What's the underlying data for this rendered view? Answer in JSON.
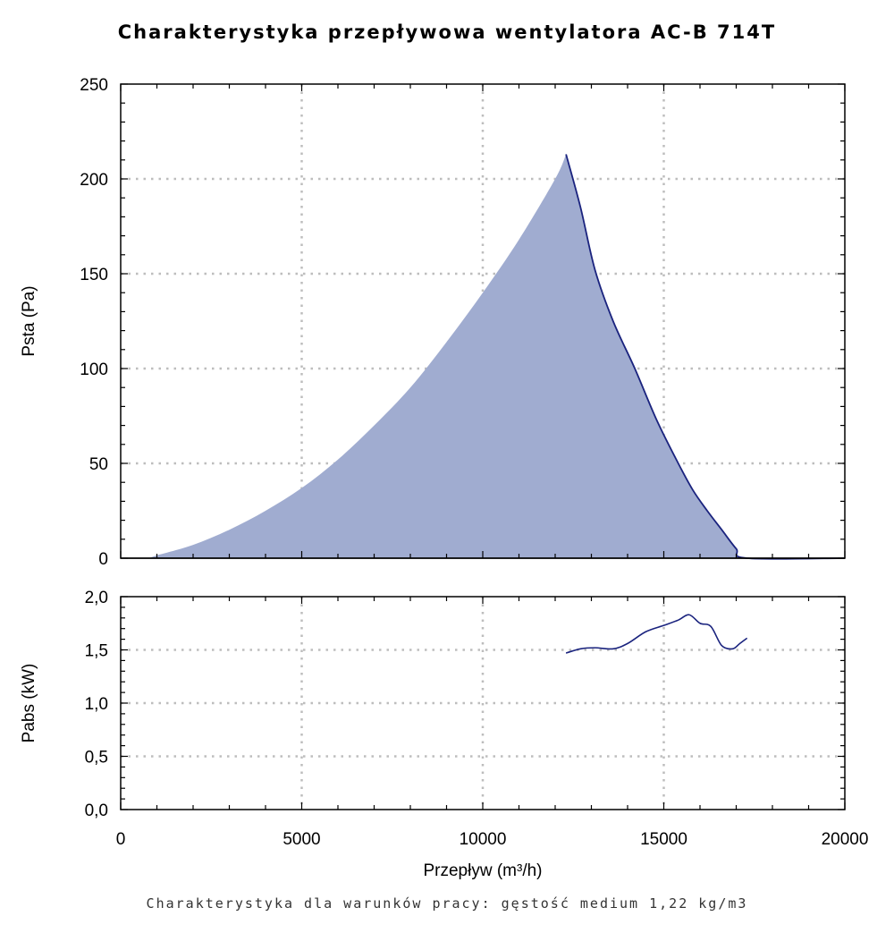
{
  "title": "Charakterystyka przepływowa wentylatora AC-B 714T",
  "footer": "Charakterystyka dla warunków pracy: gęstość medium 1,22 kg/m3",
  "colors": {
    "fill": "#a0acd0",
    "line": "#1a237e",
    "grid": "#bdbdbd"
  },
  "chart_data": [
    {
      "type": "area",
      "xlabel": "Przepływ (m³/h)",
      "ylabel": "Psta (Pa)",
      "xlim": [
        0,
        20000
      ],
      "ylim": [
        0,
        250
      ],
      "grid": true,
      "x_ticks": [
        "0",
        "5000",
        "10000",
        "15000",
        "20000"
      ],
      "y_ticks": [
        "0",
        "50",
        "100",
        "150",
        "200",
        "250"
      ],
      "series": [
        {
          "x": [
            0,
            700,
            1000,
            2000,
            3000,
            4000,
            5000,
            6000,
            7000,
            8000,
            9000,
            10000,
            11000,
            12000,
            12300,
            12700,
            13100,
            13600,
            14200,
            14800,
            15400,
            15800,
            16200,
            16600,
            17000,
            17300,
            20000
          ],
          "y": [
            0,
            0,
            1.5,
            7,
            15,
            25,
            37,
            52,
            70,
            90,
            114,
            140,
            168,
            200,
            213,
            185,
            152,
            125,
            100,
            73,
            50,
            36,
            25,
            15,
            5,
            0,
            0
          ]
        }
      ]
    },
    {
      "type": "line",
      "xlabel": "",
      "ylabel": "Pabs (kW)",
      "xlim": [
        0,
        20000
      ],
      "ylim": [
        0,
        2
      ],
      "grid": true,
      "y_ticks": [
        "0,0",
        "0,5",
        "1,0",
        "1,5",
        "2,0"
      ],
      "series": [
        {
          "x": [
            12300,
            12700,
            13100,
            13600,
            14000,
            14500,
            15000,
            15400,
            15700,
            16000,
            16300,
            16600,
            16900,
            17100,
            17300
          ],
          "y": [
            1.47,
            1.51,
            1.52,
            1.51,
            1.56,
            1.67,
            1.73,
            1.78,
            1.83,
            1.75,
            1.72,
            1.54,
            1.51,
            1.56,
            1.61
          ]
        }
      ]
    }
  ]
}
